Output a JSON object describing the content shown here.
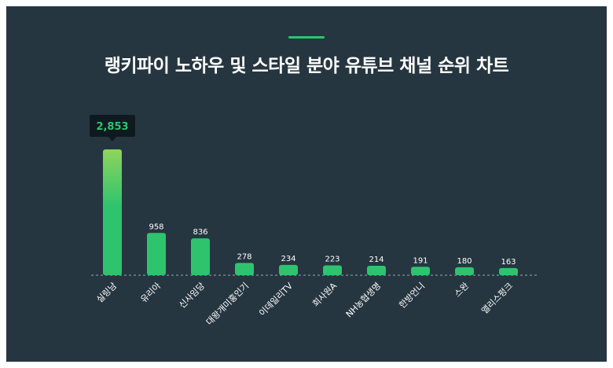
{
  "title": "랭키파이 노하우 및 스타일 분야 유튜브 채널 순위 차트",
  "colors": {
    "background": "#263640",
    "accent": "#2ec46e",
    "bar_top_highlight": "#8fd45c",
    "tooltip_bg": "#0f1a20",
    "text": "#ffffff"
  },
  "chart_data": {
    "type": "bar",
    "title": "랭키파이 노하우 및 스타일 분야 유튜브 채널 순위 차트",
    "categories": [
      "실링남",
      "유리아",
      "신사임당",
      "대왕개미홍인기",
      "이데일리TV",
      "회사원A",
      "NH농협생명",
      "한방언니",
      "스완",
      "앨리스펑크"
    ],
    "values": [
      2853,
      958,
      836,
      278,
      234,
      223,
      214,
      191,
      180,
      163
    ],
    "value_labels": [
      "2,853",
      "958",
      "836",
      "278",
      "234",
      "223",
      "214",
      "191",
      "180",
      "163"
    ],
    "highlight_index": 0,
    "grid": false,
    "legend": "none",
    "xlabel": "",
    "ylabel": ""
  }
}
